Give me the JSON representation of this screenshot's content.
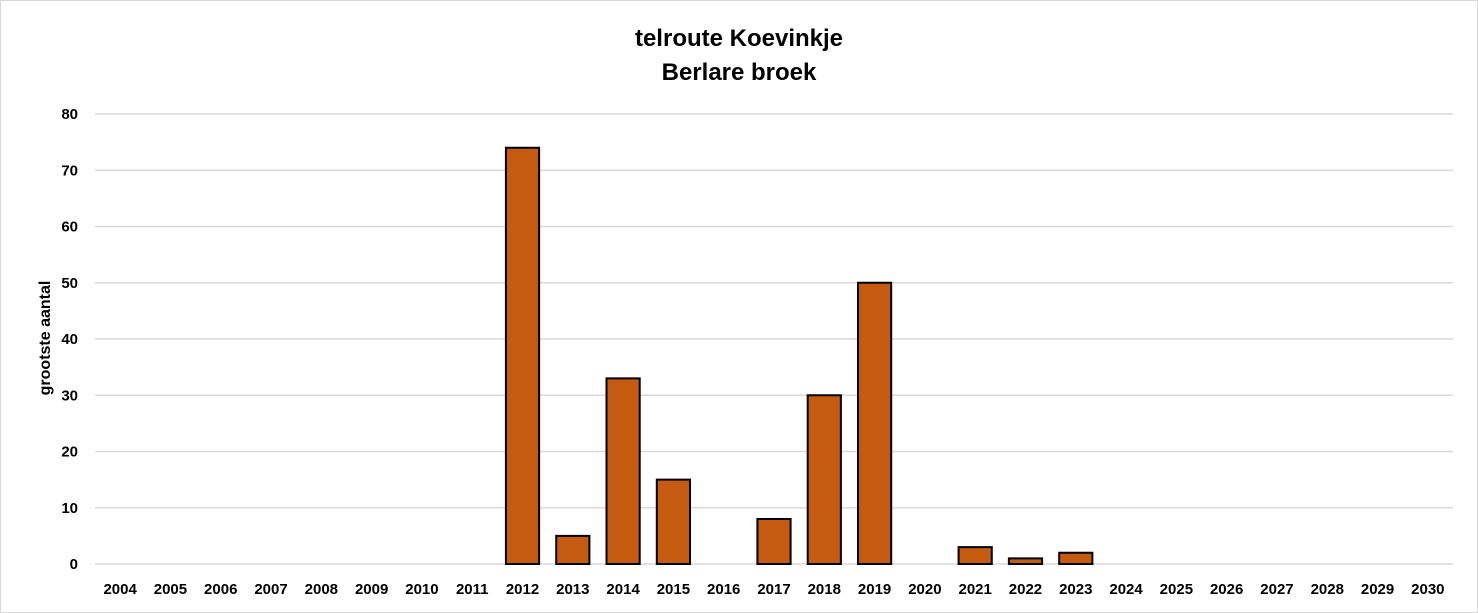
{
  "chart_data": {
    "type": "bar",
    "title_lines": [
      "telroute Koevinkje",
      "Berlare broek"
    ],
    "xlabel": "",
    "ylabel": "grootste aantal",
    "ylim": [
      0,
      80
    ],
    "yticks": [
      "0",
      "10",
      "20",
      "30",
      "40",
      "50",
      "60",
      "70",
      "80"
    ],
    "grid": true,
    "legend": "none",
    "bar_color": "#C55A11",
    "bar_edge_color": "#000000",
    "categories": [
      "2004",
      "2005",
      "2006",
      "2007",
      "2008",
      "2009",
      "2010",
      "2011",
      "2012",
      "2013",
      "2014",
      "2015",
      "2016",
      "2017",
      "2018",
      "2019",
      "2020",
      "2021",
      "2022",
      "2023",
      "2024",
      "2025",
      "2026",
      "2027",
      "2028",
      "2029",
      "2030"
    ],
    "values": [
      0,
      0,
      0,
      0,
      0,
      0,
      0,
      0,
      74,
      5,
      33,
      15,
      0,
      8,
      30,
      50,
      0,
      3,
      1,
      2,
      0,
      0,
      0,
      0,
      0,
      0,
      0
    ]
  }
}
